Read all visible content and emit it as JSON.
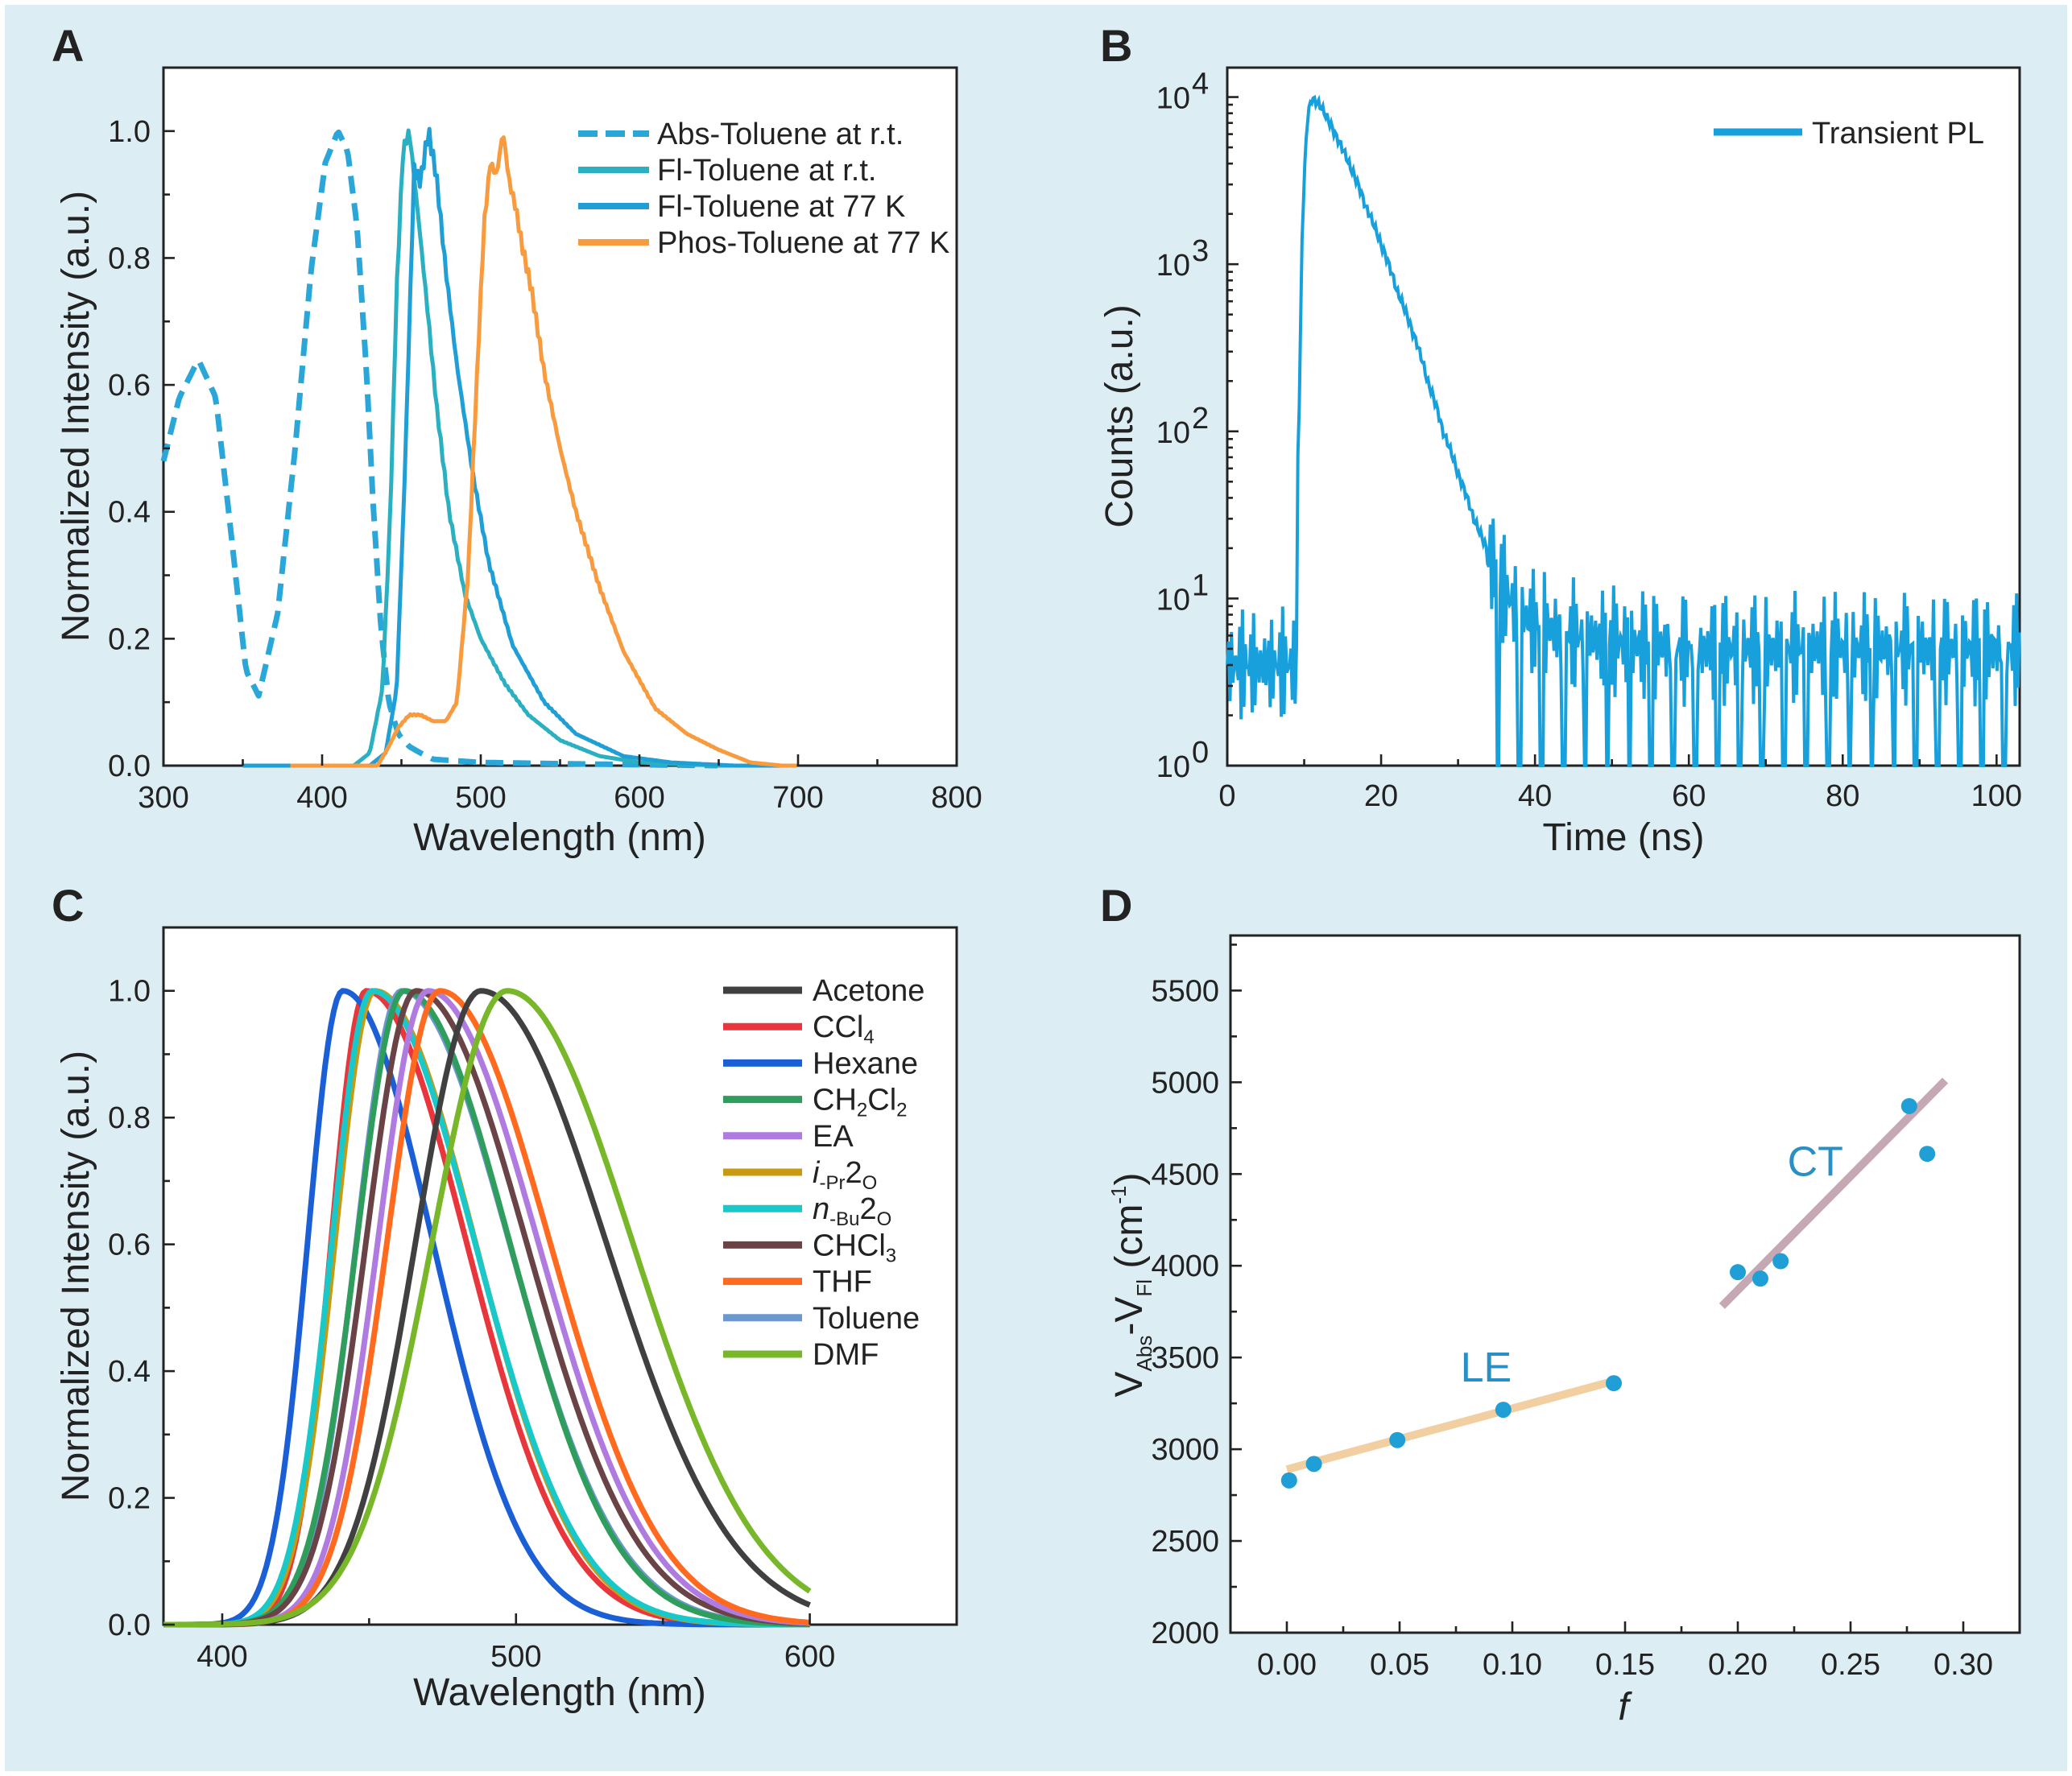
{
  "colors": {
    "background": "#dcedf4",
    "abs_toluene": "#2aa7d8",
    "fl_rt": "#2ab0c0",
    "fl_77k": "#1f9fd6",
    "phos": "#f89b3e",
    "transient": "#18a0dc",
    "scatter_point": "#1f9fd6",
    "le_fit": "#f2cfa0",
    "ct_fit": "#c6a8b4",
    "annotation": "#2a8fc5"
  },
  "panels": {
    "A": {
      "letter": "A"
    },
    "B": {
      "letter": "B"
    },
    "C": {
      "letter": "C"
    },
    "D": {
      "letter": "D"
    }
  },
  "chart_data": [
    {
      "panel": "A",
      "type": "line",
      "xlabel": "Wavelength (nm)",
      "ylabel": "Normalized Intensity (a.u.)",
      "xlim": [
        300,
        800
      ],
      "ylim": [
        0,
        1.1
      ],
      "xticks": [
        300,
        400,
        500,
        600,
        700,
        800
      ],
      "xtick_labels": [
        "300",
        "400",
        "500",
        "600",
        "700",
        "800"
      ],
      "yticks": [
        0,
        0.2,
        0.4,
        0.6,
        0.8,
        1.0
      ],
      "ytick_labels": [
        "0.0",
        "0.2",
        "0.4",
        "0.6",
        "0.8",
        "1.0"
      ],
      "legend_position": "top-right",
      "series": [
        {
          "name": "Abs-Toluene at r.t.",
          "style": "dashed",
          "color": "#2aa7d8",
          "x": [
            300,
            310,
            322,
            333,
            342,
            352,
            360,
            372,
            383,
            393,
            402,
            410,
            416,
            422,
            428,
            432,
            437,
            442,
            448,
            455,
            462,
            470,
            500,
            550,
            650
          ],
          "y": [
            0.48,
            0.58,
            0.64,
            0.58,
            0.38,
            0.15,
            0.11,
            0.24,
            0.5,
            0.78,
            0.95,
            1.0,
            0.97,
            0.85,
            0.62,
            0.42,
            0.22,
            0.1,
            0.05,
            0.03,
            0.02,
            0.01,
            0.005,
            0.003,
            0.0
          ]
        },
        {
          "name": "Fl-Toluene at r.t.",
          "style": "solid",
          "color": "#2ab0c0",
          "x": [
            350,
            420,
            430,
            438,
            443,
            447,
            451,
            455,
            460,
            466,
            472,
            480,
            490,
            500,
            515,
            530,
            550,
            575,
            600,
            650,
            700
          ],
          "y": [
            0.0,
            0.0,
            0.02,
            0.12,
            0.4,
            0.75,
            0.97,
            1.0,
            0.88,
            0.73,
            0.57,
            0.4,
            0.27,
            0.2,
            0.13,
            0.08,
            0.04,
            0.015,
            0.005,
            0.0,
            0.0
          ]
        },
        {
          "name": "Fl-Toluene at 77 K",
          "style": "solid",
          "color": "#1f9fd6",
          "x": [
            350,
            430,
            440,
            447,
            452,
            458,
            462,
            467,
            472,
            478,
            485,
            495,
            505,
            520,
            540,
            560,
            590,
            620,
            660,
            700
          ],
          "y": [
            0.0,
            0.0,
            0.02,
            0.12,
            0.45,
            0.94,
            0.92,
            1.0,
            0.93,
            0.78,
            0.63,
            0.46,
            0.32,
            0.19,
            0.1,
            0.05,
            0.015,
            0.005,
            0.0,
            0.0
          ]
        },
        {
          "name": "Phos-Toluene at 77 K",
          "style": "solid",
          "color": "#f89b3e",
          "x": [
            380,
            435,
            442,
            448,
            455,
            462,
            470,
            478,
            485,
            492,
            497,
            502,
            506,
            510,
            514,
            518,
            522,
            526,
            532,
            540,
            550,
            560,
            575,
            590,
            610,
            630,
            650,
            670,
            690,
            700
          ],
          "y": [
            0.0,
            0.0,
            0.03,
            0.06,
            0.08,
            0.08,
            0.07,
            0.07,
            0.1,
            0.3,
            0.58,
            0.85,
            0.95,
            0.93,
            1.0,
            0.92,
            0.88,
            0.82,
            0.75,
            0.62,
            0.5,
            0.4,
            0.28,
            0.18,
            0.09,
            0.05,
            0.025,
            0.005,
            0.0,
            0.0
          ]
        }
      ]
    },
    {
      "panel": "B",
      "type": "line",
      "xlabel": "Time (ns)",
      "ylabel": "Counts (a.u.)",
      "xlim": [
        0,
        103
      ],
      "ylim": [
        1,
        15000
      ],
      "y_scale": "log",
      "xticks": [
        0,
        20,
        40,
        60,
        80,
        100
      ],
      "xtick_labels": [
        "0",
        "20",
        "40",
        "60",
        "80",
        "100"
      ],
      "ytick_labels": [
        "10",
        "10",
        "10",
        "10",
        "10"
      ],
      "ytick_exponents": [
        "0",
        "1",
        "2",
        "3",
        "4"
      ],
      "legend_position": "top-right",
      "series": [
        {
          "name": "Transient PL",
          "color": "#18a0dc",
          "x": [
            0,
            9,
            9.5,
            10,
            10.5,
            11,
            12,
            14,
            16,
            18,
            20,
            22,
            24,
            26,
            28,
            30,
            32,
            34,
            36,
            38,
            40,
            45,
            50,
            60,
            70,
            80,
            90,
            100,
            103
          ],
          "y": [
            4,
            4,
            200,
            3000,
            8000,
            9800,
            9000,
            6000,
            3800,
            2200,
            1300,
            700,
            400,
            200,
            100,
            55,
            30,
            18,
            11,
            8,
            7,
            6,
            5.5,
            5,
            5,
            5,
            5,
            5,
            5
          ]
        }
      ]
    },
    {
      "panel": "C",
      "type": "line",
      "xlabel": "Wavelength (nm)",
      "ylabel": "Normalized Intensity (a.u.)",
      "xlim": [
        380,
        650
      ],
      "ylim": [
        0,
        1.1
      ],
      "xticks": [
        400,
        500,
        600
      ],
      "xtick_labels": [
        "400",
        "500",
        "600"
      ],
      "yticks": [
        0,
        0.2,
        0.4,
        0.6,
        0.8,
        1.0
      ],
      "ytick_labels": [
        "0.0",
        "0.2",
        "0.4",
        "0.6",
        "0.8",
        "1.0"
      ],
      "legend_position": "top-right",
      "x_range_series": [
        380,
        600
      ],
      "series": [
        {
          "name": "Acetone",
          "display": [
            "Acetone"
          ],
          "color": "#404040",
          "peak": 488,
          "width_left": 26,
          "width_right": 50
        },
        {
          "name": "CCl4",
          "display": [
            "CCl",
            "4",
            ""
          ],
          "color": "#e8363c",
          "peak": 449,
          "width_left": 14,
          "width_right": 40
        },
        {
          "name": "Hexane",
          "display": [
            "Hexane"
          ],
          "color": "#1a5fd6",
          "peak": 441,
          "width_left": 14,
          "width_right": 36
        },
        {
          "name": "CH2Cl2",
          "display": [
            "CH",
            "2",
            "Cl",
            "2",
            ""
          ],
          "color": "#2f9e5c",
          "peak": 462,
          "width_left": 19,
          "width_right": 42
        },
        {
          "name": "EA",
          "display": [
            "EA"
          ],
          "color": "#b07be0",
          "peak": 470,
          "width_left": 20,
          "width_right": 44
        },
        {
          "name": "i-Pr2O",
          "display": [
            "i",
            "-Pr",
            "2",
            "O"
          ],
          "color": "#c99a10",
          "peak": 452,
          "width_left": 16,
          "width_right": 40
        },
        {
          "name": "n-Bu2O",
          "display": [
            "n",
            "-Bu",
            "2",
            "O"
          ],
          "color": "#19c8c8",
          "peak": 451,
          "width_left": 16,
          "width_right": 41
        },
        {
          "name": "CHCl3",
          "display": [
            "CHCl",
            "3",
            ""
          ],
          "color": "#6a4347",
          "peak": 466,
          "width_left": 20,
          "width_right": 44
        },
        {
          "name": "THF",
          "display": [
            "THF"
          ],
          "color": "#ff6a1f",
          "peak": 474,
          "width_left": 21,
          "width_right": 44
        },
        {
          "name": "Toluene",
          "display": [
            "Toluene"
          ],
          "color": "#6d98cf",
          "peak": 461,
          "width_left": 18,
          "width_right": 43
        },
        {
          "name": "DMF",
          "display": [
            "DMF"
          ],
          "color": "#79b72a",
          "peak": 497,
          "width_left": 30,
          "width_right": 50
        }
      ]
    },
    {
      "panel": "D",
      "type": "scatter",
      "xlabel": "f",
      "ylabel_parts": [
        "V",
        "Abs",
        "-V",
        "Fl",
        " (cm",
        "-1",
        ")"
      ],
      "xlim": [
        -0.025,
        0.325
      ],
      "ylim": [
        2000,
        5800
      ],
      "xticks": [
        0.0,
        0.05,
        0.1,
        0.15,
        0.2,
        0.25,
        0.3
      ],
      "xtick_labels": [
        "0.00",
        "0.05",
        "0.10",
        "0.15",
        "0.20",
        "0.25",
        "0.30"
      ],
      "yticks": [
        2000,
        2500,
        3000,
        3500,
        4000,
        4500,
        5000,
        5500
      ],
      "ytick_labels": [
        "2000",
        "2500",
        "3000",
        "3500",
        "4000",
        "4500",
        "5000",
        "5500"
      ],
      "points": [
        {
          "x": 0.001,
          "y": 2830
        },
        {
          "x": 0.012,
          "y": 2920
        },
        {
          "x": 0.049,
          "y": 3050
        },
        {
          "x": 0.096,
          "y": 3215
        },
        {
          "x": 0.145,
          "y": 3360
        },
        {
          "x": 0.2,
          "y": 3965
        },
        {
          "x": 0.21,
          "y": 3930
        },
        {
          "x": 0.219,
          "y": 4025
        },
        {
          "x": 0.276,
          "y": 4870
        },
        {
          "x": 0.284,
          "y": 4610
        }
      ],
      "fits": [
        {
          "x": [
            0.0,
            0.146
          ],
          "y": [
            2890,
            3375
          ],
          "color": "#f2cfa0"
        },
        {
          "x": [
            0.193,
            0.292
          ],
          "y": [
            3780,
            5010
          ],
          "color": "#c6a8b4"
        }
      ],
      "annotations": [
        {
          "text": "LE",
          "x": 0.077,
          "y": 3370
        },
        {
          "text": "CT",
          "x": 0.222,
          "y": 4490
        }
      ]
    }
  ]
}
